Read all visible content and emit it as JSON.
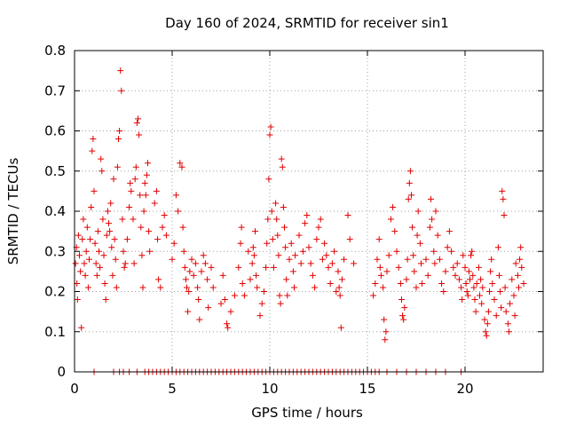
{
  "chart_data": {
    "type": "scatter",
    "title": "Day 160 of 2024, SRMTID for receiver sin1",
    "xlabel": "GPS time / hours",
    "ylabel": "SRMTID / TECUs",
    "xlim": [
      0,
      24.0
    ],
    "ylim": [
      0,
      0.8
    ],
    "xticks": [
      0,
      5,
      10,
      15,
      20
    ],
    "yticks": [
      0,
      0.1,
      0.2,
      0.3,
      0.4,
      0.5,
      0.6,
      0.7,
      0.8
    ],
    "xtick_labels": [
      "0",
      "5",
      "10",
      "15",
      "20"
    ],
    "ytick_labels": [
      "0",
      "0.1",
      "0.2",
      "0.3",
      "0.4",
      "0.5",
      "0.6",
      "0.7",
      "0.8"
    ],
    "grid": true,
    "marker": "+",
    "color": "#e00000",
    "series": [
      {
        "name": "SRMTID",
        "points": [
          [
            0.05,
            0.27
          ],
          [
            0.1,
            0.31
          ],
          [
            0.12,
            0.22
          ],
          [
            0.15,
            0.18
          ],
          [
            0.2,
            0.34
          ],
          [
            0.25,
            0.29
          ],
          [
            0.3,
            0.25
          ],
          [
            0.35,
            0.11
          ],
          [
            0.4,
            0.33
          ],
          [
            0.45,
            0.38
          ],
          [
            0.5,
            0.27
          ],
          [
            0.55,
            0.24
          ],
          [
            0.6,
            0.3
          ],
          [
            0.65,
            0.36
          ],
          [
            0.7,
            0.21
          ],
          [
            0.75,
            0.28
          ],
          [
            0.8,
            0.33
          ],
          [
            0.85,
            0.41
          ],
          [
            0.9,
            0.55
          ],
          [
            0.95,
            0.58
          ],
          [
            1.0,
            0.45
          ],
          [
            1.05,
            0.32
          ],
          [
            1.1,
            0.27
          ],
          [
            1.15,
            0.24
          ],
          [
            1.2,
            0.35
          ],
          [
            1.25,
            0.3
          ],
          [
            1.3,
            0.26
          ],
          [
            1.35,
            0.53
          ],
          [
            1.4,
            0.5
          ],
          [
            1.45,
            0.38
          ],
          [
            1.5,
            0.29
          ],
          [
            1.55,
            0.22
          ],
          [
            1.6,
            0.18
          ],
          [
            1.65,
            0.34
          ],
          [
            1.7,
            0.4
          ],
          [
            1.75,
            0.37
          ],
          [
            1.8,
            0.35
          ],
          [
            1.85,
            0.42
          ],
          [
            1.9,
            0.31
          ],
          [
            1.95,
            0.24
          ],
          [
            2.0,
            0.48
          ],
          [
            2.05,
            0.33
          ],
          [
            2.1,
            0.28
          ],
          [
            2.15,
            0.21
          ],
          [
            2.2,
            0.51
          ],
          [
            2.25,
            0.58
          ],
          [
            2.3,
            0.6
          ],
          [
            2.35,
            0.75
          ],
          [
            2.4,
            0.7
          ],
          [
            2.45,
            0.38
          ],
          [
            2.5,
            0.3
          ],
          [
            2.55,
            0.26
          ],
          [
            2.6,
            0.27
          ],
          [
            2.7,
            0.33
          ],
          [
            2.8,
            0.41
          ],
          [
            2.85,
            0.47
          ],
          [
            2.9,
            0.45
          ],
          [
            3.0,
            0.38
          ],
          [
            3.05,
            0.27
          ],
          [
            3.1,
            0.48
          ],
          [
            3.15,
            0.51
          ],
          [
            3.2,
            0.62
          ],
          [
            3.25,
            0.63
          ],
          [
            3.3,
            0.59
          ],
          [
            3.35,
            0.44
          ],
          [
            3.4,
            0.36
          ],
          [
            3.45,
            0.29
          ],
          [
            3.5,
            0.21
          ],
          [
            3.55,
            0.4
          ],
          [
            3.6,
            0.47
          ],
          [
            3.65,
            0.44
          ],
          [
            3.7,
            0.49
          ],
          [
            3.75,
            0.52
          ],
          [
            3.8,
            0.35
          ],
          [
            3.85,
            0.3
          ],
          [
            4.1,
            0.42
          ],
          [
            4.2,
            0.45
          ],
          [
            4.25,
            0.33
          ],
          [
            4.3,
            0.23
          ],
          [
            4.4,
            0.21
          ],
          [
            4.5,
            0.36
          ],
          [
            4.6,
            0.39
          ],
          [
            4.7,
            0.34
          ],
          [
            5.0,
            0.28
          ],
          [
            5.1,
            0.32
          ],
          [
            5.2,
            0.44
          ],
          [
            5.3,
            0.4
          ],
          [
            5.4,
            0.52
          ],
          [
            5.5,
            0.51
          ],
          [
            5.55,
            0.36
          ],
          [
            5.6,
            0.3
          ],
          [
            5.65,
            0.26
          ],
          [
            5.7,
            0.23
          ],
          [
            5.75,
            0.21
          ],
          [
            5.8,
            0.15
          ],
          [
            5.85,
            0.2
          ],
          [
            5.9,
            0.25
          ],
          [
            6.0,
            0.28
          ],
          [
            6.1,
            0.24
          ],
          [
            6.2,
            0.27
          ],
          [
            6.3,
            0.21
          ],
          [
            6.35,
            0.18
          ],
          [
            6.4,
            0.13
          ],
          [
            6.5,
            0.25
          ],
          [
            6.6,
            0.29
          ],
          [
            6.7,
            0.27
          ],
          [
            6.8,
            0.23
          ],
          [
            6.85,
            0.16
          ],
          [
            7.0,
            0.26
          ],
          [
            7.1,
            0.21
          ],
          [
            7.5,
            0.17
          ],
          [
            7.6,
            0.24
          ],
          [
            7.7,
            0.18
          ],
          [
            7.8,
            0.12
          ],
          [
            7.85,
            0.11
          ],
          [
            8.0,
            0.15
          ],
          [
            8.2,
            0.19
          ],
          [
            8.4,
            0.26
          ],
          [
            8.5,
            0.32
          ],
          [
            8.55,
            0.36
          ],
          [
            8.6,
            0.22
          ],
          [
            8.7,
            0.19
          ],
          [
            8.9,
            0.3
          ],
          [
            9.0,
            0.23
          ],
          [
            9.1,
            0.27
          ],
          [
            9.15,
            0.31
          ],
          [
            9.2,
            0.29
          ],
          [
            9.25,
            0.35
          ],
          [
            9.3,
            0.24
          ],
          [
            9.35,
            0.21
          ],
          [
            9.5,
            0.14
          ],
          [
            9.6,
            0.17
          ],
          [
            9.7,
            0.2
          ],
          [
            9.8,
            0.26
          ],
          [
            9.85,
            0.32
          ],
          [
            9.9,
            0.38
          ],
          [
            9.95,
            0.48
          ],
          [
            10.0,
            0.59
          ],
          [
            10.05,
            0.61
          ],
          [
            10.1,
            0.4
          ],
          [
            10.15,
            0.33
          ],
          [
            10.2,
            0.26
          ],
          [
            10.3,
            0.42
          ],
          [
            10.35,
            0.38
          ],
          [
            10.4,
            0.34
          ],
          [
            10.45,
            0.29
          ],
          [
            10.5,
            0.19
          ],
          [
            10.55,
            0.17
          ],
          [
            10.6,
            0.53
          ],
          [
            10.65,
            0.51
          ],
          [
            10.7,
            0.41
          ],
          [
            10.75,
            0.36
          ],
          [
            10.8,
            0.31
          ],
          [
            10.85,
            0.23
          ],
          [
            10.9,
            0.19
          ],
          [
            11.0,
            0.28
          ],
          [
            11.1,
            0.32
          ],
          [
            11.2,
            0.25
          ],
          [
            11.25,
            0.21
          ],
          [
            11.3,
            0.29
          ],
          [
            11.5,
            0.34
          ],
          [
            11.6,
            0.27
          ],
          [
            11.7,
            0.3
          ],
          [
            11.8,
            0.37
          ],
          [
            11.9,
            0.39
          ],
          [
            12.0,
            0.31
          ],
          [
            12.1,
            0.27
          ],
          [
            12.2,
            0.24
          ],
          [
            12.3,
            0.21
          ],
          [
            12.4,
            0.33
          ],
          [
            12.5,
            0.36
          ],
          [
            12.6,
            0.38
          ],
          [
            12.7,
            0.28
          ],
          [
            12.8,
            0.32
          ],
          [
            12.9,
            0.29
          ],
          [
            13.0,
            0.26
          ],
          [
            13.1,
            0.22
          ],
          [
            13.2,
            0.27
          ],
          [
            13.3,
            0.3
          ],
          [
            13.4,
            0.2
          ],
          [
            13.5,
            0.25
          ],
          [
            13.55,
            0.21
          ],
          [
            13.6,
            0.19
          ],
          [
            13.65,
            0.11
          ],
          [
            13.7,
            0.23
          ],
          [
            13.8,
            0.28
          ],
          [
            14.0,
            0.39
          ],
          [
            14.1,
            0.33
          ],
          [
            14.3,
            0.27
          ],
          [
            15.3,
            0.19
          ],
          [
            15.4,
            0.22
          ],
          [
            15.5,
            0.28
          ],
          [
            15.6,
            0.33
          ],
          [
            15.65,
            0.26
          ],
          [
            15.7,
            0.24
          ],
          [
            15.8,
            0.21
          ],
          [
            15.85,
            0.13
          ],
          [
            15.9,
            0.08
          ],
          [
            15.95,
            0.1
          ],
          [
            16.0,
            0.25
          ],
          [
            16.1,
            0.29
          ],
          [
            16.2,
            0.38
          ],
          [
            16.3,
            0.41
          ],
          [
            16.4,
            0.35
          ],
          [
            16.5,
            0.3
          ],
          [
            16.6,
            0.26
          ],
          [
            16.7,
            0.22
          ],
          [
            16.75,
            0.18
          ],
          [
            16.8,
            0.14
          ],
          [
            16.85,
            0.13
          ],
          [
            16.9,
            0.16
          ],
          [
            17.0,
            0.23
          ],
          [
            17.05,
            0.28
          ],
          [
            17.1,
            0.43
          ],
          [
            17.15,
            0.47
          ],
          [
            17.2,
            0.5
          ],
          [
            17.25,
            0.44
          ],
          [
            17.3,
            0.36
          ],
          [
            17.35,
            0.29
          ],
          [
            17.4,
            0.25
          ],
          [
            17.5,
            0.21
          ],
          [
            17.55,
            0.34
          ],
          [
            17.6,
            0.4
          ],
          [
            17.7,
            0.32
          ],
          [
            17.75,
            0.27
          ],
          [
            17.8,
            0.22
          ],
          [
            18.0,
            0.28
          ],
          [
            18.1,
            0.24
          ],
          [
            18.2,
            0.36
          ],
          [
            18.25,
            0.43
          ],
          [
            18.3,
            0.38
          ],
          [
            18.4,
            0.3
          ],
          [
            18.45,
            0.27
          ],
          [
            18.5,
            0.4
          ],
          [
            18.6,
            0.34
          ],
          [
            18.7,
            0.28
          ],
          [
            18.8,
            0.22
          ],
          [
            18.9,
            0.2
          ],
          [
            19.0,
            0.25
          ],
          [
            19.1,
            0.31
          ],
          [
            19.2,
            0.35
          ],
          [
            19.3,
            0.3
          ],
          [
            19.4,
            0.26
          ],
          [
            19.5,
            0.24
          ],
          [
            19.6,
            0.27
          ],
          [
            19.7,
            0.23
          ],
          [
            19.8,
            0.21
          ],
          [
            19.85,
            0.18
          ],
          [
            19.9,
            0.29
          ],
          [
            20.0,
            0.26
          ],
          [
            20.05,
            0.22
          ],
          [
            20.1,
            0.2
          ],
          [
            20.15,
            0.19
          ],
          [
            20.2,
            0.25
          ],
          [
            20.25,
            0.23
          ],
          [
            20.3,
            0.29
          ],
          [
            20.35,
            0.3
          ],
          [
            20.4,
            0.24
          ],
          [
            20.45,
            0.21
          ],
          [
            20.5,
            0.18
          ],
          [
            20.55,
            0.15
          ],
          [
            20.6,
            0.22
          ],
          [
            20.7,
            0.26
          ],
          [
            20.75,
            0.19
          ],
          [
            20.8,
            0.23
          ],
          [
            20.85,
            0.17
          ],
          [
            20.9,
            0.21
          ],
          [
            21.0,
            0.13
          ],
          [
            21.05,
            0.1
          ],
          [
            21.1,
            0.09
          ],
          [
            21.15,
            0.12
          ],
          [
            21.2,
            0.15
          ],
          [
            21.25,
            0.2
          ],
          [
            21.3,
            0.25
          ],
          [
            21.35,
            0.28
          ],
          [
            21.4,
            0.22
          ],
          [
            21.5,
            0.18
          ],
          [
            21.6,
            0.14
          ],
          [
            21.7,
            0.31
          ],
          [
            21.75,
            0.24
          ],
          [
            21.8,
            0.2
          ],
          [
            21.85,
            0.16
          ],
          [
            21.9,
            0.45
          ],
          [
            21.95,
            0.43
          ],
          [
            22.0,
            0.39
          ],
          [
            22.05,
            0.21
          ],
          [
            22.1,
            0.15
          ],
          [
            22.2,
            0.12
          ],
          [
            22.25,
            0.1
          ],
          [
            22.3,
            0.17
          ],
          [
            22.4,
            0.23
          ],
          [
            22.5,
            0.19
          ],
          [
            22.55,
            0.14
          ],
          [
            22.6,
            0.27
          ],
          [
            22.7,
            0.24
          ],
          [
            22.75,
            0.21
          ],
          [
            22.8,
            0.28
          ],
          [
            22.85,
            0.31
          ],
          [
            22.9,
            0.26
          ],
          [
            23.0,
            0.22
          ]
        ],
        "zero_points_x": [
          1.0,
          2.0,
          2.3,
          2.5,
          2.8,
          3.2,
          3.6,
          3.8,
          4.0,
          4.2,
          4.4,
          4.6,
          4.8,
          5.0,
          5.2,
          5.4,
          5.6,
          5.8,
          6.0,
          6.2,
          6.4,
          6.6,
          6.8,
          7.0,
          7.2,
          7.4,
          7.6,
          7.8,
          8.0,
          8.2,
          8.4,
          8.6,
          8.8,
          9.0,
          9.2,
          9.4,
          9.6,
          9.8,
          10.0,
          10.2,
          10.4,
          10.6,
          10.8,
          11.0,
          11.2,
          11.4,
          11.6,
          11.8,
          12.0,
          12.2,
          12.4,
          12.6,
          12.8,
          13.0,
          13.2,
          13.4,
          13.6,
          13.8,
          14.0,
          14.2,
          14.4,
          14.6,
          14.8,
          15.0,
          15.2,
          15.4,
          15.6,
          16.0,
          16.5,
          17.0,
          17.5,
          18.0,
          18.5,
          19.0,
          19.8
        ]
      }
    ]
  }
}
